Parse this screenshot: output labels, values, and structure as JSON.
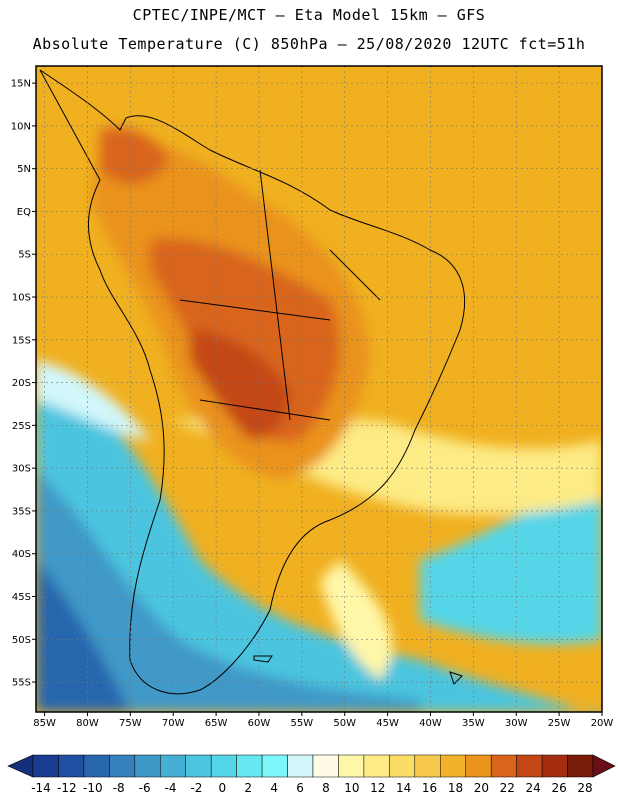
{
  "title_line1": "CPTEC/INPE/MCT —  Eta Model 15km — GFS",
  "title_line2": "Absolute Temperature (C) 850hPa — 25/08/2020 12UTC fct=51h",
  "lat_labels": [
    "15N",
    "10N",
    "5N",
    "EQ",
    "5S",
    "10S",
    "15S",
    "20S",
    "25S",
    "30S",
    "35S",
    "40S",
    "45S",
    "50S",
    "55S"
  ],
  "lat_values": [
    15,
    10,
    5,
    0,
    -5,
    -10,
    -15,
    -20,
    -25,
    -30,
    -35,
    -40,
    -45,
    -50,
    -55
  ],
  "lon_labels": [
    "85W",
    "80W",
    "75W",
    "70W",
    "65W",
    "60W",
    "55W",
    "50W",
    "45W",
    "40W",
    "35W",
    "30W",
    "25W",
    "20W"
  ],
  "lon_values": [
    -85,
    -80,
    -75,
    -70,
    -65,
    -60,
    -55,
    -50,
    -45,
    -40,
    -35,
    -30,
    -25,
    -20
  ],
  "map_extent": {
    "lon_min": -86,
    "lon_max": -20,
    "lat_min": -58.5,
    "lat_max": 17
  },
  "colorbar": {
    "labels": [
      "-14",
      "-12",
      "-10",
      "-8",
      "-6",
      "-4",
      "-2",
      "0",
      "2",
      "4",
      "6",
      "8",
      "10",
      "12",
      "14",
      "16",
      "18",
      "20",
      "22",
      "24",
      "26",
      "28"
    ],
    "colors": [
      "#1a3c8f",
      "#1f4fa0",
      "#2866ad",
      "#3580bd",
      "#3f99c8",
      "#45b0d4",
      "#4cc5df",
      "#55d6e8",
      "#66e8f2",
      "#7ef7fa",
      "#d2f7fb",
      "#fffbe5",
      "#fff7a8",
      "#fdeb85",
      "#fbdc65",
      "#f6c94c",
      "#f2b22b",
      "#ea931d",
      "#d9651a",
      "#c44616",
      "#a42d10",
      "#7a1c0a"
    ],
    "under_color": "#14307a",
    "over_color": "#6a0f1a"
  }
}
